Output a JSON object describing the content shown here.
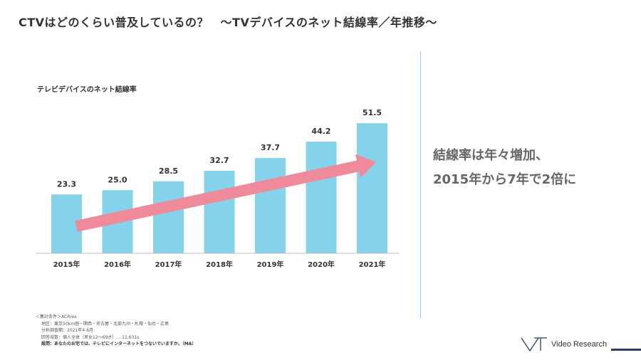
{
  "page": {
    "title": "CTVはどのくらい普及しているの？　～TVデバイスのネット結線率／年推移～",
    "message_line1": "結線率は年々増加、",
    "message_line2": "2015年から7年で2倍に",
    "logo_text": "Video Research"
  },
  "notes": {
    "line1": "＜集計条件＞ACR/ex",
    "line2": "地区：東京50km圏・関西・名古屋・北部九州・札幌・仙台・広島",
    "line3": "分析調査期：2021年4-6月",
    "line4": "回答母数：個人全体（男女12〜69才）… 11,631s",
    "line5": "設問：あなたのお宅では、テレビにインターネットをつないでいますか。（MA）"
  },
  "colors": {
    "bar": "#85d3ea",
    "arrow": "#ef8a9b",
    "axis": "#bfbfbf",
    "divider": "#8fcfe6"
  },
  "chart_data": {
    "type": "bar",
    "title": "テレビデバイスのネット結線率",
    "categories": [
      "2015年",
      "2016年",
      "2017年",
      "2018年",
      "2019年",
      "2020年",
      "2021年"
    ],
    "values": [
      23.3,
      25.0,
      28.5,
      32.7,
      37.7,
      44.2,
      51.5
    ],
    "data_labels": [
      "23.3",
      "25.0",
      "28.5",
      "32.7",
      "37.7",
      "44.2",
      "51.5"
    ],
    "xlabel": "",
    "ylabel": "",
    "grid": false,
    "trend_arrow": true
  }
}
